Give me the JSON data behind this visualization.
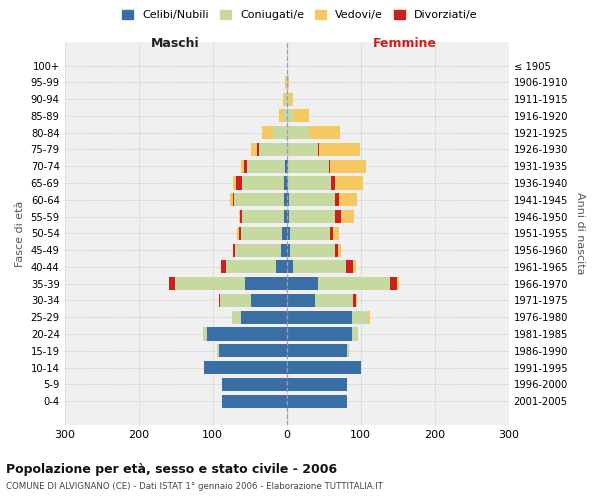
{
  "age_groups": [
    "0-4",
    "5-9",
    "10-14",
    "15-19",
    "20-24",
    "25-29",
    "30-34",
    "35-39",
    "40-44",
    "45-49",
    "50-54",
    "55-59",
    "60-64",
    "65-69",
    "70-74",
    "75-79",
    "80-84",
    "85-89",
    "90-94",
    "95-99",
    "100+"
  ],
  "birth_years": [
    "2001-2005",
    "1996-2000",
    "1991-1995",
    "1986-1990",
    "1981-1985",
    "1976-1980",
    "1971-1975",
    "1966-1970",
    "1961-1965",
    "1956-1960",
    "1951-1955",
    "1946-1950",
    "1941-1945",
    "1936-1940",
    "1931-1935",
    "1926-1930",
    "1921-1925",
    "1916-1920",
    "1911-1915",
    "1906-1910",
    "≤ 1905"
  ],
  "male": {
    "celibi": [
      88,
      88,
      112,
      92,
      108,
      62,
      48,
      56,
      14,
      8,
      7,
      3,
      3,
      3,
      2,
      0,
      0,
      0,
      0,
      0,
      0
    ],
    "coniugati": [
      0,
      0,
      0,
      2,
      5,
      12,
      42,
      95,
      68,
      62,
      55,
      58,
      68,
      58,
      52,
      38,
      18,
      4,
      2,
      1,
      0
    ],
    "vedovi": [
      0,
      0,
      0,
      0,
      0,
      0,
      0,
      0,
      0,
      0,
      2,
      2,
      3,
      4,
      5,
      8,
      16,
      7,
      3,
      1,
      0
    ],
    "divorziati": [
      0,
      0,
      0,
      0,
      0,
      0,
      2,
      8,
      7,
      2,
      3,
      2,
      2,
      7,
      3,
      2,
      0,
      0,
      0,
      0,
      0
    ]
  },
  "female": {
    "nubili": [
      82,
      82,
      100,
      82,
      88,
      88,
      38,
      42,
      8,
      5,
      4,
      3,
      3,
      2,
      2,
      0,
      0,
      0,
      0,
      0,
      0
    ],
    "coniugate": [
      0,
      0,
      0,
      2,
      8,
      22,
      52,
      98,
      72,
      60,
      55,
      62,
      62,
      58,
      55,
      42,
      30,
      8,
      3,
      1,
      0
    ],
    "vedove": [
      0,
      0,
      0,
      0,
      0,
      2,
      2,
      2,
      4,
      5,
      8,
      18,
      25,
      38,
      48,
      55,
      42,
      22,
      5,
      2,
      1
    ],
    "divorziate": [
      0,
      0,
      0,
      0,
      0,
      0,
      3,
      9,
      9,
      4,
      4,
      8,
      5,
      5,
      2,
      2,
      0,
      0,
      0,
      0,
      0
    ]
  },
  "colors": {
    "celibi": "#3a6fa5",
    "coniugati": "#c5d9a0",
    "vedovi": "#f5c862",
    "divorziati": "#cc2020"
  },
  "title": "Popolazione per età, sesso e stato civile - 2006",
  "subtitle": "COMUNE DI ALVIGNANO (CE) - Dati ISTAT 1° gennaio 2006 - Elaborazione TUTTITALIA.IT",
  "xlabel_left": "Maschi",
  "xlabel_right": "Femmine",
  "ylabel_left": "Fasce di età",
  "ylabel_right": "Anni di nascita",
  "xlim": 300,
  "legend_labels": [
    "Celibi/Nubili",
    "Coniugati/e",
    "Vedovi/e",
    "Divorziati/e"
  ],
  "bg_color": "#f0f0f0",
  "fig_bg": "#ffffff",
  "grid_color": "#cccccc"
}
